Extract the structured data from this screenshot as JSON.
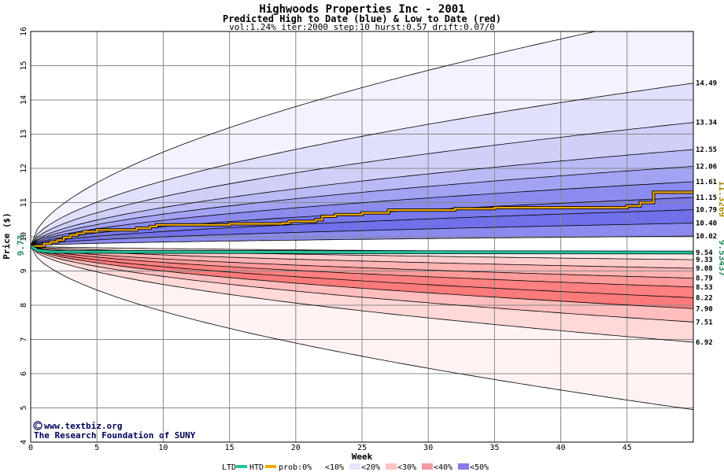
{
  "chart_data": {
    "type": "area",
    "title": "Highwoods Properties Inc - 2001",
    "subtitle": "Predicted High to Date (blue) &  Low to Date (red)",
    "params": "vol:1.24% iter:2000 step:10 hurst:0.57 drift:0.07/0",
    "xlabel": "Week",
    "ylabel": "Price ($)",
    "xlim": [
      0,
      50
    ],
    "ylim": [
      4,
      16
    ],
    "x_ticks": [
      0,
      5,
      10,
      15,
      20,
      25,
      30,
      35,
      40,
      45
    ],
    "y_ticks": [
      4,
      5,
      6,
      7,
      8,
      9,
      10,
      11,
      12,
      13,
      14,
      15,
      16
    ],
    "grid": true,
    "start_price": 9.73,
    "start_label": "9.73",
    "high_curve_finals": [
      16.6,
      14.49,
      13.34,
      12.55,
      12.06,
      11.61,
      11.15,
      10.79,
      10.4,
      10.02
    ],
    "low_curve_finals": [
      9.54,
      9.33,
      9.08,
      8.79,
      8.53,
      8.22,
      7.9,
      7.51,
      6.92,
      4.95
    ],
    "right_labels": [
      "14.49",
      "13.34",
      "12.55",
      "12.06",
      "11.61",
      "11.15",
      "10.79",
      "10.40",
      "10.02",
      "9.54",
      "9.33",
      "9.08",
      "8.79",
      "8.53",
      "8.22",
      "7.90",
      "7.51",
      "6.92"
    ],
    "htd_path": [
      [
        0,
        9.73
      ],
      [
        1,
        9.8
      ],
      [
        1.5,
        9.85
      ],
      [
        2,
        9.9
      ],
      [
        2.5,
        9.98
      ],
      [
        3,
        10.05
      ],
      [
        3.5,
        10.1
      ],
      [
        4,
        10.15
      ],
      [
        5,
        10.2
      ],
      [
        8,
        10.25
      ],
      [
        9,
        10.3
      ],
      [
        9.5,
        10.35
      ],
      [
        15,
        10.38
      ],
      [
        19,
        10.4
      ],
      [
        19.5,
        10.45
      ],
      [
        21.5,
        10.5
      ],
      [
        22,
        10.6
      ],
      [
        23,
        10.65
      ],
      [
        25,
        10.7
      ],
      [
        27,
        10.78
      ],
      [
        32,
        10.82
      ],
      [
        35,
        10.85
      ],
      [
        45,
        10.9
      ],
      [
        46,
        11.0
      ],
      [
        47,
        11.3
      ],
      [
        50,
        11.3
      ]
    ],
    "htd_final": "11.3269",
    "ltd_path": [
      [
        0,
        9.73
      ],
      [
        0.5,
        9.6
      ],
      [
        1.5,
        9.56
      ],
      [
        50,
        9.54
      ]
    ],
    "ltd_final": "9.53437",
    "legend": {
      "ltd": "LTD",
      "htd": "HTD",
      "prob": "prob:0%",
      "bins": [
        "<10%",
        "<20%",
        "<30%",
        "<40%",
        "<50%"
      ]
    },
    "colors": {
      "htd": "#f0a800",
      "ltd": "#22c49a",
      "htd_label": "#b08800",
      "ltd_label": "#1e8a5a",
      "blue_bands": [
        "#f3f3ff",
        "#e0e0fc",
        "#cfcff8",
        "#babaf6",
        "#a3a3f3",
        "#8c8cef",
        "#7878ec",
        "#7070ea",
        "#8a8aef"
      ],
      "red_bands": [
        "#ffe6e6",
        "#ffcccc",
        "#ffb3b3",
        "#ff9a9a",
        "#ff8080",
        "#fb7a7a",
        "#ffbdbd",
        "#ffd8d8",
        "#fff2f2"
      ]
    }
  },
  "credits": {
    "site": "www.textbiz.org",
    "org": "The Research Foundation of SUNY"
  }
}
